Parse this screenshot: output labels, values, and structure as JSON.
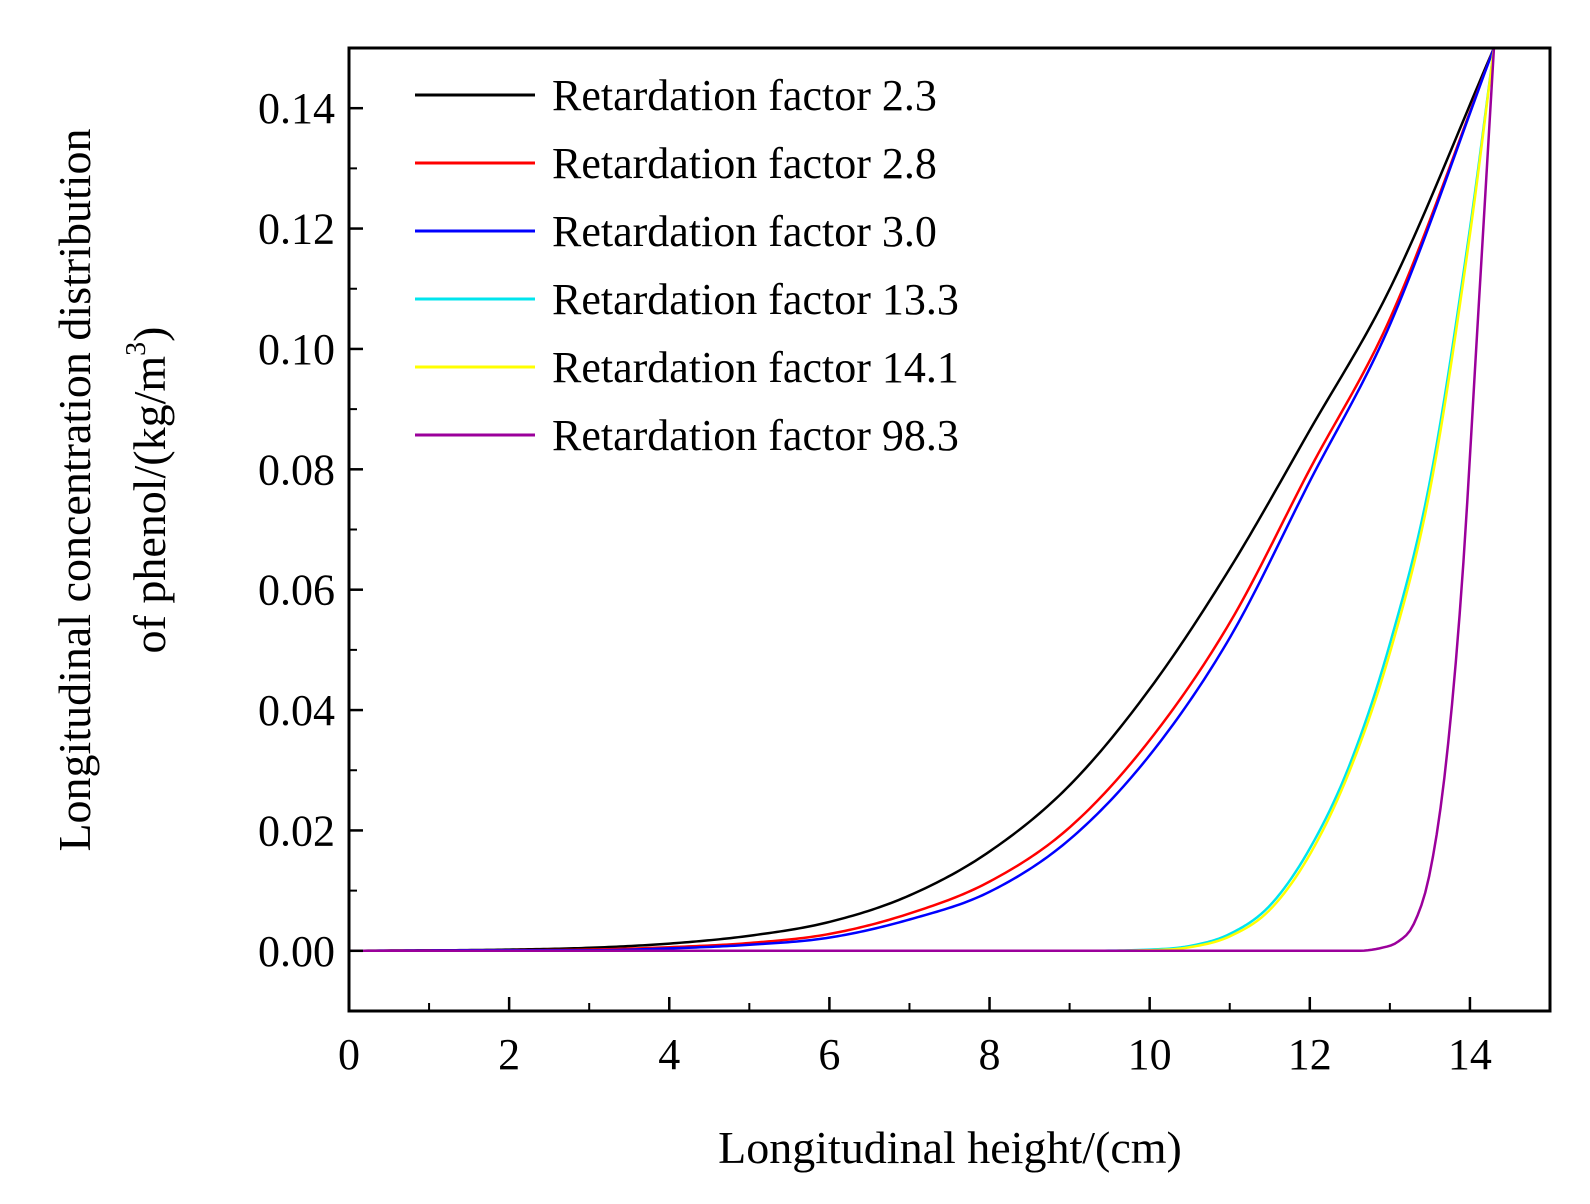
{
  "chart_data": {
    "type": "line",
    "xlabel": "Longitudinal height/(cm)",
    "ylabel_line1": "Longitudinal concentration distribution",
    "ylabel_line2": "of phenol/(kg/m",
    "ylabel_sup": "3",
    "ylabel_close": ")",
    "xlim": [
      0,
      15
    ],
    "ylim": [
      -0.01,
      0.15
    ],
    "xticks": [
      0,
      2,
      4,
      6,
      8,
      10,
      12,
      14
    ],
    "xtick_labels": [
      "0",
      "2",
      "4",
      "6",
      "8",
      "10",
      "12",
      "14"
    ],
    "yticks": [
      0.0,
      0.02,
      0.04,
      0.06,
      0.08,
      0.1,
      0.12,
      0.14
    ],
    "ytick_labels": [
      "0.00",
      "0.02",
      "0.04",
      "0.06",
      "0.08",
      "0.10",
      "0.12",
      "0.14"
    ],
    "legend_position": "top-left",
    "series": [
      {
        "name": "Retardation factor 2.3",
        "color": "#000000",
        "x": [
          0,
          2,
          3,
          4,
          5,
          6,
          7,
          8,
          9,
          10,
          11,
          12,
          13,
          14.3
        ],
        "y": [
          0.0,
          0.0002,
          0.0005,
          0.0012,
          0.0025,
          0.0048,
          0.0092,
          0.0165,
          0.0275,
          0.0435,
          0.0635,
          0.0865,
          0.11,
          0.15
        ]
      },
      {
        "name": "Retardation factor 2.8",
        "color": "#ff0000",
        "x": [
          0,
          2,
          3,
          4,
          5,
          6,
          7,
          8,
          9,
          10,
          11,
          12,
          13,
          14.3
        ],
        "y": [
          0.0,
          0.0001,
          0.0002,
          0.0006,
          0.0013,
          0.0028,
          0.0062,
          0.0115,
          0.0205,
          0.035,
          0.0545,
          0.08,
          0.105,
          0.15
        ]
      },
      {
        "name": "Retardation factor 3.0",
        "color": "#0000ff",
        "x": [
          0,
          2,
          3,
          4,
          5,
          6,
          7,
          8,
          9,
          10,
          11,
          12,
          13,
          14.3
        ],
        "y": [
          0.0,
          0.0001,
          0.0001,
          0.0004,
          0.001,
          0.0022,
          0.0052,
          0.0098,
          0.0185,
          0.0325,
          0.052,
          0.078,
          0.104,
          0.15
        ]
      },
      {
        "name": "Retardation factor 13.3",
        "color": "#00e5ee",
        "x": [
          0,
          9,
          10,
          10.5,
          11,
          11.5,
          12,
          12.5,
          13,
          13.5,
          14,
          14.3
        ],
        "y": [
          0.0,
          0.0,
          0.0002,
          0.0008,
          0.0028,
          0.0075,
          0.017,
          0.031,
          0.051,
          0.078,
          0.12,
          0.15
        ]
      },
      {
        "name": "Retardation factor 14.1",
        "color": "#ffff00",
        "x": [
          0,
          9,
          10,
          10.5,
          11,
          11.5,
          12,
          12.5,
          13,
          13.5,
          14,
          14.3
        ],
        "y": [
          0.0,
          0.0,
          0.0001,
          0.0006,
          0.0024,
          0.0068,
          0.016,
          0.03,
          0.0495,
          0.0765,
          0.119,
          0.15
        ]
      },
      {
        "name": "Retardation factor 98.3",
        "color": "#9b009b",
        "x": [
          0,
          12.6,
          12.9,
          13.1,
          13.3,
          13.5,
          13.7,
          13.9,
          14.1,
          14.3
        ],
        "y": [
          0.0,
          0.0,
          0.0005,
          0.0015,
          0.0045,
          0.013,
          0.031,
          0.061,
          0.105,
          0.15
        ]
      }
    ]
  }
}
